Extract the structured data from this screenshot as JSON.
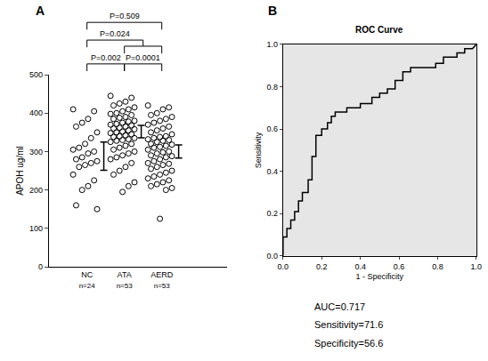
{
  "chart_data": [
    {
      "type": "strip",
      "panel_label": "A",
      "categories": [
        "NC",
        "ATA",
        "AERD"
      ],
      "category_notes": [
        "n=24",
        "n=53",
        "n=53"
      ],
      "values": [
        [
          410,
          405,
          385,
          375,
          365,
          350,
          335,
          320,
          310,
          305,
          300,
          295,
          285,
          280,
          275,
          270,
          265,
          260,
          240,
          225,
          210,
          200,
          160,
          150
        ],
        [
          445,
          440,
          430,
          425,
          420,
          415,
          410,
          405,
          400,
          398,
          395,
          390,
          388,
          385,
          380,
          378,
          375,
          372,
          370,
          368,
          365,
          362,
          360,
          358,
          355,
          352,
          350,
          348,
          345,
          342,
          340,
          338,
          335,
          332,
          330,
          328,
          325,
          320,
          315,
          310,
          305,
          300,
          295,
          290,
          285,
          280,
          270,
          260,
          250,
          240,
          220,
          210,
          195
        ],
        [
          420,
          415,
          410,
          400,
          395,
          390,
          385,
          380,
          375,
          370,
          365,
          360,
          355,
          350,
          345,
          340,
          338,
          335,
          332,
          330,
          328,
          325,
          320,
          318,
          315,
          312,
          310,
          305,
          300,
          298,
          295,
          290,
          288,
          285,
          280,
          275,
          270,
          268,
          265,
          260,
          255,
          250,
          245,
          240,
          235,
          230,
          225,
          220,
          215,
          210,
          205,
          200,
          125
        ]
      ],
      "error_bars": {
        "mean": [
          288,
          352,
          300
        ],
        "error": [
          37,
          16,
          17
        ]
      },
      "y_label": "APOH ug/ml",
      "ylim": [
        0,
        500
      ],
      "yticks": [
        0,
        100,
        200,
        300,
        400,
        500
      ],
      "marker": "open circle",
      "color": "#000000",
      "grid": false,
      "comparisons": [
        {
          "from": "NC",
          "to": "ATA",
          "label": "P=0.002"
        },
        {
          "from": "ATA",
          "to": "AERD",
          "label": "P=0.0001"
        },
        {
          "from": "NC",
          "to": [
            "ATA",
            "AERD"
          ],
          "label": "P=0.024"
        },
        {
          "from": "NC",
          "to": "AERD",
          "label": "P=0.509"
        }
      ]
    },
    {
      "type": "line",
      "panel_label": "B",
      "title": "ROC Curve",
      "x_label": "1 - Specificity",
      "y_label": "Sensitivity",
      "x": [
        0,
        0,
        0.02,
        0.02,
        0.04,
        0.04,
        0.06,
        0.06,
        0.08,
        0.08,
        0.1,
        0.1,
        0.13,
        0.13,
        0.15,
        0.15,
        0.17,
        0.17,
        0.2,
        0.2,
        0.23,
        0.23,
        0.25,
        0.25,
        0.27,
        0.27,
        0.33,
        0.33,
        0.4,
        0.4,
        0.46,
        0.46,
        0.5,
        0.5,
        0.54,
        0.54,
        0.58,
        0.58,
        0.62,
        0.62,
        0.66,
        0.66,
        0.79,
        0.79,
        0.83,
        0.83,
        0.9,
        0.9,
        0.94,
        0.94,
        0.98,
        1
      ],
      "values": [
        0,
        0.09,
        0.09,
        0.13,
        0.13,
        0.17,
        0.17,
        0.21,
        0.21,
        0.26,
        0.26,
        0.3,
        0.3,
        0.36,
        0.36,
        0.47,
        0.47,
        0.57,
        0.57,
        0.6,
        0.6,
        0.63,
        0.63,
        0.66,
        0.66,
        0.68,
        0.68,
        0.7,
        0.7,
        0.72,
        0.72,
        0.75,
        0.75,
        0.77,
        0.77,
        0.79,
        0.79,
        0.83,
        0.83,
        0.87,
        0.87,
        0.89,
        0.89,
        0.91,
        0.91,
        0.94,
        0.94,
        0.96,
        0.96,
        0.98,
        0.98,
        1
      ],
      "xlim": [
        0,
        1
      ],
      "xticks": [
        {
          "value": 0,
          "label": "0.0"
        },
        {
          "value": 0.2,
          "label": "0.2"
        },
        {
          "value": 0.4,
          "label": "0.4"
        },
        {
          "value": 0.6,
          "label": "0.6"
        },
        {
          "value": 0.8,
          "label": "0.8"
        },
        {
          "value": 1,
          "label": "1.0"
        }
      ],
      "ylim": [
        0,
        1
      ],
      "yticks": [
        {
          "value": 0,
          "label": "0.0"
        },
        {
          "value": 0.2,
          "label": "0.2"
        },
        {
          "value": 0.4,
          "label": "0.4"
        },
        {
          "value": 0.6,
          "label": "0.6"
        },
        {
          "value": 0.8,
          "label": "0.8"
        },
        {
          "value": 1,
          "label": "1.0"
        }
      ],
      "color": "#000000",
      "grid": false,
      "annotations": [
        "AUC=0.717",
        "Sensitivity=71.6",
        "Specificity=56.6"
      ]
    }
  ]
}
